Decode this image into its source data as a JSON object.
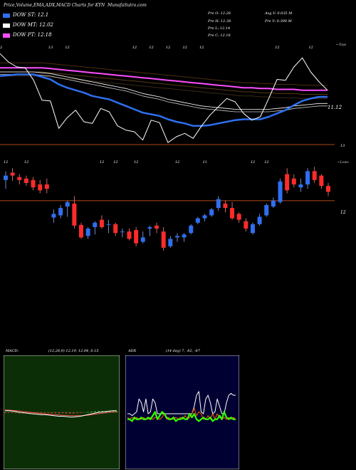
{
  "header": {
    "title": "Price,Volume,EMA,ADX,MACD Charts for KYN",
    "site": "MunafaSutra.com"
  },
  "legend": [
    {
      "label": "DOW ST: 12.1",
      "color": "#2f6ff0"
    },
    {
      "label": "DOW MT: 12.02",
      "color": "#ffffff"
    },
    {
      "label": "DOW PT: 12.18",
      "color": "#ff4dff"
    }
  ],
  "stats": {
    "prev_open": "Pre O: 12.28",
    "prev_high": "Pre H: 12.38",
    "prev_low": "Pre L: 12.14",
    "prev_close": "Pre C: 12.18",
    "avg_vol": "Avg V: 0.035 M",
    "prev_vol": "Pre V: 0.398 M"
  },
  "chart_data": [
    {
      "type": "line",
      "name": "price-ema",
      "right_label_top": "←Tops",
      "right_label_price": "11.12",
      "right_label_bottom": "13",
      "top_markers": [
        {
          "i": 0,
          "label": "12"
        },
        {
          "i": 6,
          "label": "13"
        },
        {
          "i": 8,
          "label": "12"
        },
        {
          "i": 16,
          "label": "12"
        },
        {
          "i": 18,
          "label": "12"
        },
        {
          "i": 20,
          "label": "12"
        },
        {
          "i": 22,
          "label": "12"
        },
        {
          "i": 24,
          "label": "12"
        },
        {
          "i": 33,
          "label": "12"
        },
        {
          "i": 37,
          "label": "12"
        }
      ],
      "close": [
        12.62,
        12.52,
        12.46,
        12.45,
        12.3,
        12.06,
        12.05,
        11.72,
        11.85,
        11.94,
        11.8,
        11.78,
        11.96,
        11.92,
        11.75,
        11.7,
        11.68,
        11.58,
        11.82,
        11.79,
        11.55,
        11.62,
        11.66,
        11.6,
        11.75,
        11.88,
        11.98,
        12.08,
        12.04,
        11.9,
        11.82,
        11.86,
        12.08,
        12.31,
        12.3,
        12.46,
        12.57,
        12.4,
        12.28,
        12.18
      ],
      "ema_short": [
        12.35,
        12.36,
        12.37,
        12.37,
        12.37,
        12.34,
        12.31,
        12.25,
        12.21,
        12.18,
        12.15,
        12.11,
        12.09,
        12.07,
        12.03,
        11.99,
        11.95,
        11.91,
        11.89,
        11.87,
        11.83,
        11.8,
        11.78,
        11.75,
        11.75,
        11.76,
        11.78,
        11.8,
        11.82,
        11.83,
        11.83,
        11.83,
        11.86,
        11.9,
        11.94,
        12.0,
        12.05,
        12.08,
        12.1,
        12.1
      ],
      "ema_mid": [
        12.4,
        12.4,
        12.4,
        12.4,
        12.4,
        12.39,
        12.38,
        12.36,
        12.34,
        12.32,
        12.3,
        12.28,
        12.26,
        12.24,
        12.22,
        12.2,
        12.17,
        12.14,
        12.12,
        12.1,
        12.07,
        12.05,
        12.03,
        12.01,
        11.99,
        11.98,
        11.97,
        11.96,
        11.95,
        11.95,
        11.95,
        11.95,
        11.95,
        11.96,
        11.97,
        11.99,
        12.0,
        12.01,
        12.02,
        12.02
      ],
      "ema_long": [
        12.45,
        12.45,
        12.45,
        12.45,
        12.45,
        12.45,
        12.44,
        12.43,
        12.42,
        12.41,
        12.4,
        12.39,
        12.38,
        12.37,
        12.36,
        12.35,
        12.34,
        12.33,
        12.32,
        12.31,
        12.3,
        12.29,
        12.28,
        12.27,
        12.26,
        12.25,
        12.24,
        12.23,
        12.22,
        12.21,
        12.21,
        12.2,
        12.2,
        12.19,
        12.19,
        12.19,
        12.18,
        12.18,
        12.18,
        12.18
      ]
    },
    {
      "type": "candlestick",
      "name": "price-candles",
      "right_label_top": "←Lows",
      "right_label_price": "12",
      "ylim": [
        11.3,
        12.8
      ],
      "top_markers": [
        {
          "i": 0,
          "label": "12"
        },
        {
          "i": 3,
          "label": "12"
        },
        {
          "i": 14,
          "label": "12"
        },
        {
          "i": 16,
          "label": "12"
        },
        {
          "i": 19,
          "label": "12"
        },
        {
          "i": 25,
          "label": "12"
        },
        {
          "i": 29,
          "label": "11"
        },
        {
          "i": 36,
          "label": "12"
        },
        {
          "i": 38,
          "label": "12"
        }
      ],
      "candles": [
        {
          "o": 12.56,
          "h": 12.68,
          "l": 12.44,
          "c": 12.62
        },
        {
          "o": 12.66,
          "h": 12.72,
          "l": 12.55,
          "c": 12.62
        },
        {
          "o": 12.6,
          "h": 12.64,
          "l": 12.5,
          "c": 12.56
        },
        {
          "o": 12.58,
          "h": 12.62,
          "l": 12.48,
          "c": 12.52
        },
        {
          "o": 12.56,
          "h": 12.6,
          "l": 12.42,
          "c": 12.46
        },
        {
          "o": 12.5,
          "h": 12.56,
          "l": 12.38,
          "c": 12.42
        },
        {
          "o": 12.5,
          "h": 12.58,
          "l": 12.38,
          "c": 12.44
        },
        {
          "o": 12.05,
          "h": 12.16,
          "l": 11.98,
          "c": 12.1
        },
        {
          "o": 12.08,
          "h": 12.22,
          "l": 12.04,
          "c": 12.18
        },
        {
          "o": 12.2,
          "h": 12.28,
          "l": 12.06,
          "c": 12.26
        },
        {
          "o": 12.24,
          "h": 12.34,
          "l": 11.9,
          "c": 11.94
        },
        {
          "o": 11.95,
          "h": 11.98,
          "l": 11.76,
          "c": 11.78
        },
        {
          "o": 11.8,
          "h": 11.92,
          "l": 11.76,
          "c": 11.9
        },
        {
          "o": 11.92,
          "h": 12.0,
          "l": 11.82,
          "c": 11.98
        },
        {
          "o": 12.02,
          "h": 12.08,
          "l": 11.9,
          "c": 11.92
        },
        {
          "o": 11.95,
          "h": 12.02,
          "l": 11.84,
          "c": 11.96
        },
        {
          "o": 11.96,
          "h": 11.98,
          "l": 11.8,
          "c": 11.84
        },
        {
          "o": 11.86,
          "h": 11.9,
          "l": 11.78,
          "c": 11.86
        },
        {
          "o": 11.86,
          "h": 11.9,
          "l": 11.74,
          "c": 11.76
        },
        {
          "o": 11.88,
          "h": 11.92,
          "l": 11.66,
          "c": 11.7
        },
        {
          "o": 11.72,
          "h": 11.86,
          "l": 11.7,
          "c": 11.78
        },
        {
          "o": 11.9,
          "h": 11.94,
          "l": 11.8,
          "c": 11.92
        },
        {
          "o": 11.94,
          "h": 11.98,
          "l": 11.84,
          "c": 11.9
        },
        {
          "o": 11.86,
          "h": 11.92,
          "l": 11.6,
          "c": 11.64
        },
        {
          "o": 11.66,
          "h": 11.8,
          "l": 11.64,
          "c": 11.76
        },
        {
          "o": 11.78,
          "h": 11.84,
          "l": 11.72,
          "c": 11.8
        },
        {
          "o": 11.78,
          "h": 11.84,
          "l": 11.72,
          "c": 11.82
        },
        {
          "o": 11.84,
          "h": 11.96,
          "l": 11.82,
          "c": 11.94
        },
        {
          "o": 11.98,
          "h": 12.06,
          "l": 11.96,
          "c": 12.04
        },
        {
          "o": 12.04,
          "h": 12.1,
          "l": 12.0,
          "c": 12.08
        },
        {
          "o": 12.08,
          "h": 12.18,
          "l": 12.06,
          "c": 12.16
        },
        {
          "o": 12.18,
          "h": 12.34,
          "l": 12.14,
          "c": 12.3
        },
        {
          "o": 12.24,
          "h": 12.28,
          "l": 12.12,
          "c": 12.18
        },
        {
          "o": 12.18,
          "h": 12.26,
          "l": 12.02,
          "c": 12.04
        },
        {
          "o": 12.1,
          "h": 12.12,
          "l": 11.98,
          "c": 12.02
        },
        {
          "o": 12.0,
          "h": 12.04,
          "l": 11.86,
          "c": 11.9
        },
        {
          "o": 11.84,
          "h": 11.98,
          "l": 11.82,
          "c": 11.96
        },
        {
          "o": 11.96,
          "h": 12.1,
          "l": 11.94,
          "c": 12.06
        },
        {
          "o": 12.08,
          "h": 12.24,
          "l": 12.06,
          "c": 12.22
        },
        {
          "o": 12.2,
          "h": 12.32,
          "l": 12.18,
          "c": 12.28
        },
        {
          "o": 12.26,
          "h": 12.58,
          "l": 12.24,
          "c": 12.54
        },
        {
          "o": 12.64,
          "h": 12.72,
          "l": 12.38,
          "c": 12.42
        },
        {
          "o": 12.58,
          "h": 12.64,
          "l": 12.46,
          "c": 12.5
        },
        {
          "o": 12.46,
          "h": 12.58,
          "l": 12.4,
          "c": 12.5
        },
        {
          "o": 12.5,
          "h": 12.72,
          "l": 12.44,
          "c": 12.68
        },
        {
          "o": 12.68,
          "h": 12.74,
          "l": 12.52,
          "c": 12.56
        },
        {
          "o": 12.62,
          "h": 12.64,
          "l": 12.44,
          "c": 12.48
        },
        {
          "o": 12.48,
          "h": 12.52,
          "l": 12.34,
          "c": 12.4
        }
      ]
    },
    {
      "type": "line",
      "name": "macd",
      "title": "MACD",
      "params": "(12,26,9) 12.19, 12.04, 0.15",
      "macd": [
        0.02,
        0.02,
        0.015,
        0.01,
        0.0,
        -0.005,
        -0.01,
        -0.015,
        -0.02,
        -0.025,
        -0.03,
        -0.03,
        -0.035,
        -0.04,
        -0.045,
        -0.05,
        -0.05,
        -0.055,
        -0.06,
        -0.06,
        -0.055,
        -0.05,
        -0.04,
        -0.03,
        -0.02,
        -0.01,
        0.0,
        0.005,
        0.01,
        0.015,
        0.02,
        0.02
      ],
      "signal": [
        0.03,
        0.028,
        0.025,
        0.02,
        0.015,
        0.01,
        0.005,
        0.0,
        -0.005,
        -0.01,
        -0.015,
        -0.02,
        -0.025,
        -0.028,
        -0.032,
        -0.035,
        -0.038,
        -0.04,
        -0.042,
        -0.044,
        -0.044,
        -0.043,
        -0.04,
        -0.036,
        -0.03,
        -0.024,
        -0.018,
        -0.012,
        -0.006,
        0.0,
        0.005,
        0.01
      ]
    },
    {
      "type": "line",
      "name": "adx",
      "title": "ADX",
      "params": "(14 day) 7, -82, -87",
      "adx": [
        30,
        30,
        29,
        30,
        31,
        38,
        36,
        31,
        38,
        30,
        31,
        38,
        36,
        30,
        30,
        30,
        30,
        30,
        30,
        30,
        30,
        30,
        30,
        30,
        30,
        30,
        30,
        30,
        30,
        34,
        40,
        42,
        31,
        30,
        38,
        40,
        36,
        30,
        31,
        38,
        34,
        30,
        30,
        36,
        40,
        41,
        40,
        40
      ],
      "di_plus": [
        27,
        27,
        26,
        28,
        27,
        27,
        28,
        27,
        27,
        28,
        27,
        29,
        31,
        27,
        29,
        31,
        30,
        28,
        27,
        27,
        28,
        26,
        27,
        27,
        28,
        27,
        27,
        30,
        28,
        30,
        27,
        26,
        27,
        28,
        27,
        27,
        28,
        26,
        27,
        27,
        29,
        27,
        31,
        28,
        27,
        28,
        27,
        27
      ],
      "di_minus": [
        28,
        27,
        28,
        27,
        28,
        27,
        27,
        28,
        27,
        27,
        28,
        27,
        28,
        28,
        27,
        28,
        30,
        27,
        28,
        27,
        27,
        28,
        27,
        28,
        27,
        29,
        27,
        28,
        30,
        33,
        29,
        31,
        30,
        27,
        27,
        29,
        27,
        30,
        27,
        30,
        28,
        27,
        28,
        27,
        28,
        27,
        28,
        27
      ]
    }
  ]
}
